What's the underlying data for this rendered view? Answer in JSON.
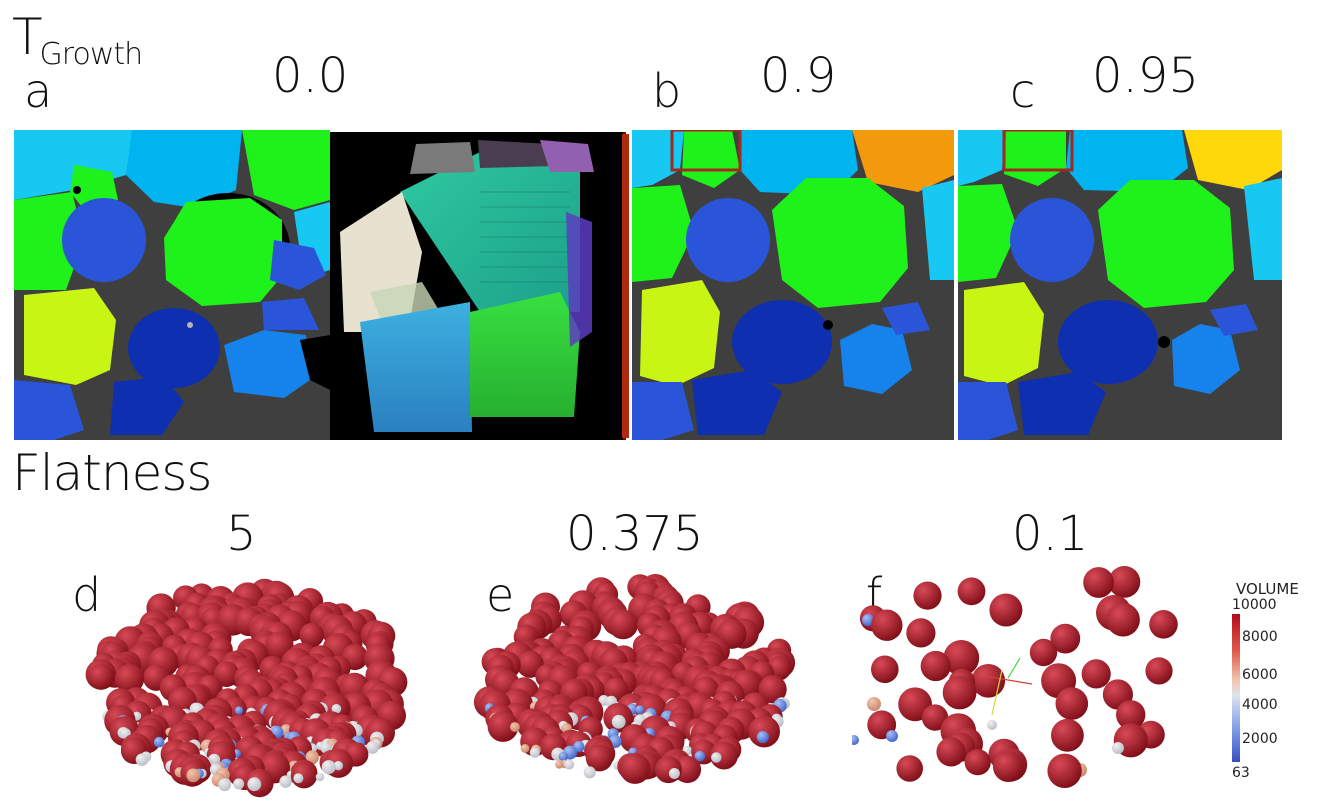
{
  "growth_section": {
    "title_main": "T",
    "title_sub": "Growth",
    "panels": [
      {
        "letter": "a",
        "value": "0.0"
      },
      {
        "letter": "b",
        "value": "0.9"
      },
      {
        "letter": "c",
        "value": "0.95"
      }
    ]
  },
  "flatness_section": {
    "title": "Flatness",
    "panels": [
      {
        "letter": "d",
        "value": "5"
      },
      {
        "letter": "e",
        "value": "0.375"
      },
      {
        "letter": "f",
        "value": "0.1"
      }
    ]
  },
  "colorbar": {
    "title": "VOLUME",
    "max_label": "10000",
    "ticks": [
      "8000",
      "6000",
      "4000",
      "2000"
    ],
    "min_label": "63"
  },
  "colors": {
    "cyan": "#16c8f2",
    "sky": "#00b4f0",
    "green": "#1ef21a",
    "lime": "#c8f514",
    "royal": "#2a55d8",
    "navy": "#0d2fb0",
    "azure": "#1682ec",
    "orange": "#f39a0c",
    "yellow": "#ffd80a",
    "grain_boundary": "#b4b4b4",
    "highlight_box": "#a3291f",
    "sphere_large": "#a3141f",
    "sphere_small": "#6b8fe0"
  }
}
